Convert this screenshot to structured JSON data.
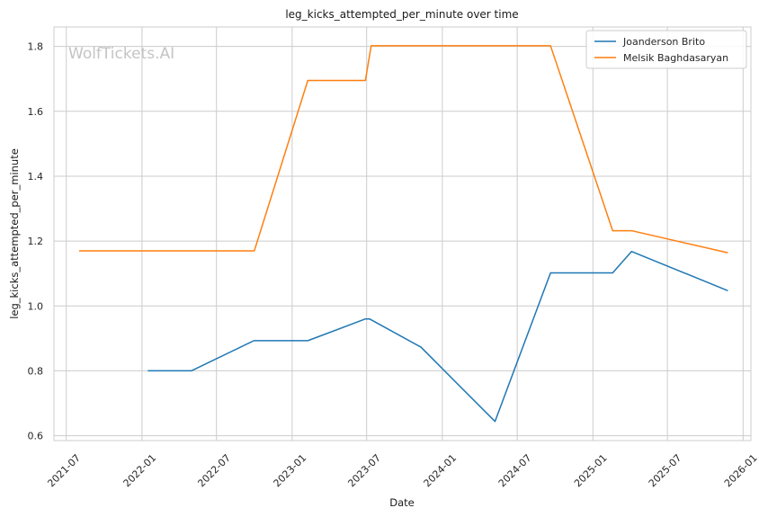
{
  "chart_data": {
    "type": "line",
    "title": "leg_kicks_attempted_per_minute over time",
    "xlabel": "Date",
    "ylabel": "leg_kicks_attempted_per_minute",
    "watermark": "WolfTickets.AI",
    "x_range": [
      "2021-06-01",
      "2026-01-20"
    ],
    "ylim": [
      0.585,
      1.86
    ],
    "x_ticks": [
      "2021-07",
      "2022-01",
      "2022-07",
      "2023-01",
      "2023-07",
      "2024-01",
      "2024-07",
      "2025-01",
      "2025-07",
      "2026-01"
    ],
    "y_ticks": [
      0.6,
      0.8,
      1.0,
      1.2,
      1.4,
      1.6,
      1.8
    ],
    "y_tick_labels": [
      "0.6",
      "0.8",
      "1.0",
      "1.2",
      "1.4",
      "1.6",
      "1.8"
    ],
    "grid": true,
    "legend_position": "top-right",
    "series": [
      {
        "name": "Joanderson Brito",
        "color": "#1f77b4",
        "points": [
          [
            "2022-01-15",
            0.8
          ],
          [
            "2022-05-01",
            0.8
          ],
          [
            "2022-09-30",
            0.893
          ],
          [
            "2023-02-08",
            0.893
          ],
          [
            "2023-06-28",
            0.96
          ],
          [
            "2023-07-08",
            0.96
          ],
          [
            "2023-11-10",
            0.873
          ],
          [
            "2024-05-08",
            0.644
          ],
          [
            "2024-09-20",
            1.102
          ],
          [
            "2025-02-18",
            1.102
          ],
          [
            "2025-04-05",
            1.168
          ],
          [
            "2025-11-25",
            1.047
          ]
        ]
      },
      {
        "name": "Melsik Baghdasaryan",
        "color": "#ff7f0e",
        "points": [
          [
            "2021-08-01",
            1.17
          ],
          [
            "2022-10-01",
            1.17
          ],
          [
            "2023-02-08",
            1.695
          ],
          [
            "2023-06-28",
            1.695
          ],
          [
            "2023-07-12",
            1.802
          ],
          [
            "2024-09-20",
            1.802
          ],
          [
            "2025-02-18",
            1.232
          ],
          [
            "2025-04-05",
            1.232
          ],
          [
            "2025-11-25",
            1.164
          ]
        ]
      }
    ]
  }
}
